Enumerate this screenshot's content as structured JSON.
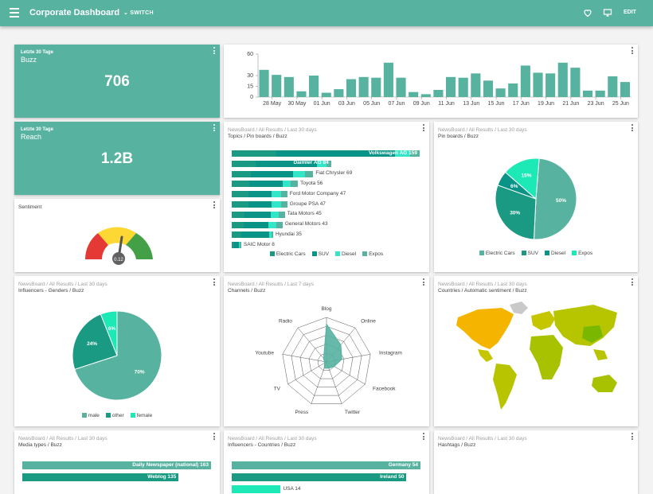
{
  "app": {
    "title": "Corporate Dashboard",
    "switch_label": "SWITCH",
    "edit_label": "EDIT"
  },
  "colors": {
    "primary": "#57b3a0",
    "teal_dark": "#1a9a82",
    "teal_mid": "#0a9488",
    "teal_light": "#33e6c7",
    "accent": "#1de9b6"
  },
  "kpi_buzz": {
    "subtitle": "Letzte 30 Tage",
    "label": "Buzz",
    "value": "706"
  },
  "kpi_reach": {
    "subtitle": "Letzte 30 Tage",
    "label": "Reach",
    "value": "1.2B"
  },
  "timeline": {
    "chart_data": {
      "type": "bar",
      "y_ticks": [
        "60",
        "30",
        "15",
        "0"
      ],
      "ylim": [
        0,
        60
      ],
      "x_labels": [
        "28 May",
        "30 May",
        "01 Jun",
        "03 Jun",
        "05 Jun",
        "07 Jun",
        "09 Jun",
        "11 Jun",
        "13 Jun",
        "15 Jun",
        "17 Jun",
        "19 Jun",
        "21 Jun",
        "23 Jun",
        "25 Jun"
      ],
      "values": [
        38,
        31,
        28,
        8,
        30,
        6,
        11,
        25,
        28,
        27,
        48,
        27,
        7,
        4,
        10,
        28,
        27,
        33,
        23,
        12,
        19,
        44,
        34,
        33,
        48,
        41,
        9,
        9,
        29,
        21
      ]
    }
  },
  "sentiment": {
    "title": "Sentiment",
    "value_label": "0.12"
  },
  "topics": {
    "crumb": "NewsBoard / All Results / Last 30 days",
    "title": "Topics / Pin boards / Buzz",
    "chart_data": {
      "type": "bar",
      "orientation": "horizontal-stacked",
      "categories": [
        "Volkswagen AG",
        "Daimler AG",
        "Fiat Chrysler",
        "Toyota",
        "Ford Motor Company",
        "Groupe PSA",
        "Tata Motors",
        "General Motors",
        "Hyundai",
        "SAIC Motor"
      ],
      "labels": [
        "Volkswagen AG 159",
        "Daimler AG 84",
        "Fiat Chrysler 69",
        "Toyota 56",
        "Ford Motor Company 47",
        "Groupe PSA 47",
        "Tata Motors 45",
        "General Motors 43",
        "Hyundai 35",
        "SAIC Motor 8"
      ],
      "series": [
        {
          "name": "Electric Cars",
          "values": [
            38,
            20,
            16,
            15,
            14,
            14,
            11,
            10,
            8,
            2
          ]
        },
        {
          "name": "SUV",
          "values": [
            100,
            52,
            36,
            28,
            20,
            20,
            22,
            21,
            24,
            4
          ]
        },
        {
          "name": "Diesel",
          "values": [
            13,
            8,
            10,
            7,
            8,
            8,
            7,
            7,
            2,
            1
          ]
        },
        {
          "name": "Expos",
          "values": [
            8,
            4,
            7,
            6,
            5,
            5,
            5,
            5,
            1,
            1
          ]
        }
      ],
      "xlim": [
        0,
        159
      ]
    },
    "legend": [
      "Electric Cars",
      "SUV",
      "Diesel",
      "Expos"
    ]
  },
  "pinboards": {
    "crumb": "NewsBoard / All Results / Last 30 days",
    "title": "Pin boards / Buzz",
    "chart_data": {
      "type": "pie",
      "labels": [
        "Electric Cars",
        "SUV",
        "Diesel",
        "Expos"
      ],
      "values": [
        50,
        30,
        6,
        15
      ],
      "value_labels": [
        "50%",
        "30%",
        "6%",
        "15%"
      ]
    },
    "legend": [
      "Electric Cars",
      "SUV",
      "Diesel",
      "Expos"
    ]
  },
  "influencers_genders": {
    "crumb": "NewsBoard / All Results / Last 30 days",
    "title": "Influencers - Genders / Buzz",
    "chart_data": {
      "type": "pie",
      "labels": [
        "male",
        "other",
        "female"
      ],
      "values": [
        70,
        24,
        6
      ],
      "value_labels": [
        "70%",
        "24%",
        "6%"
      ]
    },
    "legend": [
      "male",
      "other",
      "female"
    ]
  },
  "channels": {
    "crumb": "NewsBoard / All Results / Last 7 days",
    "title": "Channels / Buzz",
    "chart_data": {
      "type": "radar",
      "axes": [
        "Blog",
        "Online",
        "Instagram",
        "Facebook",
        "Twitter",
        "Press",
        "TV",
        "Youtube",
        "Radio"
      ],
      "values": [
        0.85,
        0.5,
        0.35,
        0.2,
        0.15,
        0.15,
        0.05,
        0.05,
        0.1
      ]
    }
  },
  "countries": {
    "crumb": "NewsBoard / All Results / Last 30 days",
    "title": "Countries / Automatic sentiment / Buzz"
  },
  "media_types": {
    "crumb": "NewsBoard / All Results / Last 30 days",
    "title": "Media types / Buzz",
    "bars": [
      {
        "label": "Daily Newspaper (national) 163",
        "value": 163
      },
      {
        "label": "Weblog 135",
        "value": 135
      }
    ]
  },
  "influencer_countries": {
    "crumb": "NewsBoard / All Results / Last 30 days",
    "title": "Influencers - Countries / Buzz",
    "bars": [
      {
        "label": "Germany 54",
        "value": 54
      },
      {
        "label": "Ireland 50",
        "value": 50
      },
      {
        "label": "USA 14",
        "value": 14
      }
    ]
  },
  "hashtags": {
    "crumb": "NewsBoard / All Results / Last 30 days",
    "title": "Hashtags / Buzz"
  }
}
